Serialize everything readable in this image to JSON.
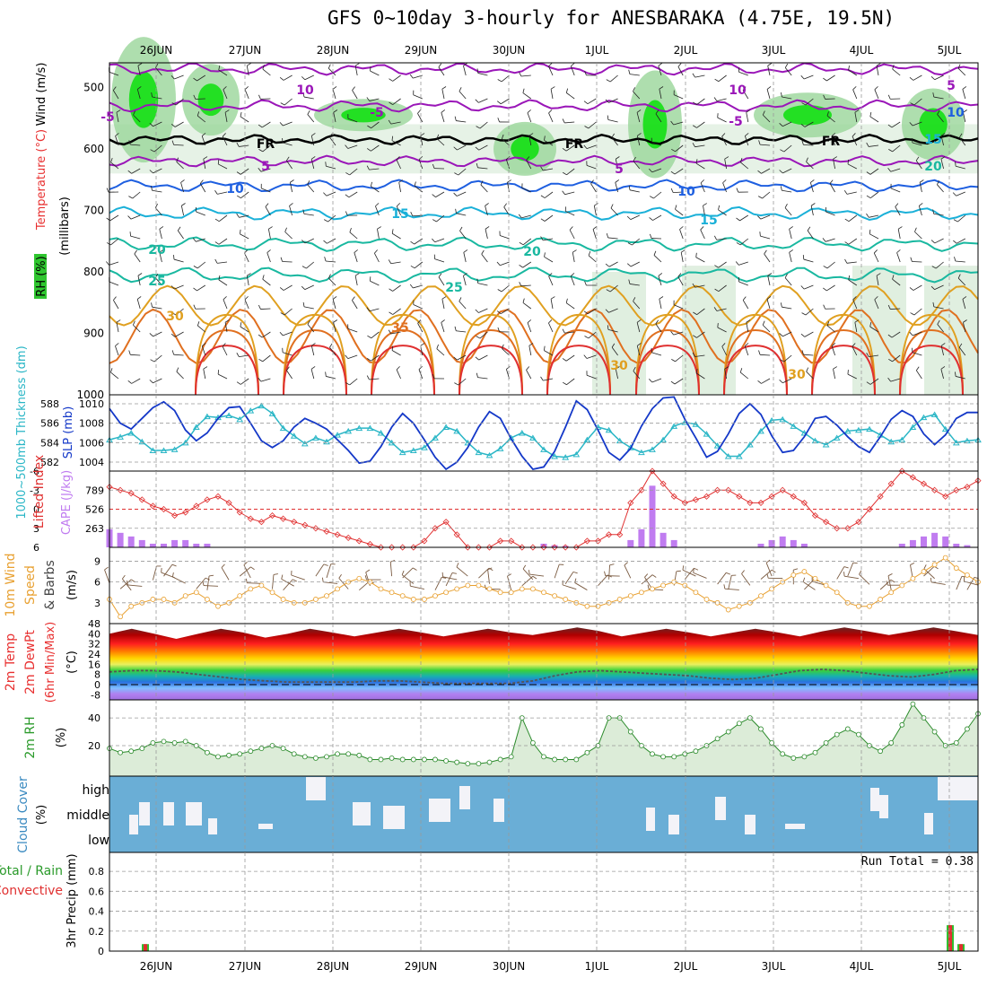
{
  "title": "GFS 0~10day 3-hourly for ANESBARAKA (4.75E, 19.5N)",
  "date_labels": [
    "26JUN",
    "27JUN",
    "28JUN",
    "29JUN",
    "30JUN",
    "1JUL",
    "2JUL",
    "3JUL",
    "4JUL",
    "5JUL"
  ],
  "colors": {
    "rh_green": "#2fc62f",
    "bright_green": "#00e000",
    "temp_purple": "#9a16b8",
    "temp_blue": "#1e5fe0",
    "temp_cyan": "#1ab0d8",
    "temp_teal": "#19b8a0",
    "temp_orange": "#e0a020",
    "temp_red": "#e83030",
    "thickness": "#2ab6c6",
    "slp": "#1438c8",
    "cape": "#c07cf0",
    "lifted": "#e03030",
    "wind10": "#e8a030",
    "cloud": "#6aaed6",
    "rain_total": "#30c030",
    "rain_conv": "#e03030"
  },
  "panels": {
    "upper": {
      "ylabel_wind": "Wind (m/s)",
      "ylabel_temp": "Temperature (°C)",
      "ylabel_rh": "RH (%)",
      "ylabel_pres": "(millibars)",
      "ticks": [
        "500",
        "600",
        "700",
        "800",
        "900",
        "1000"
      ],
      "contour_labels": [
        {
          "text": "10",
          "color": "#9a16b8"
        },
        {
          "text": "-5",
          "color": "#9a16b8"
        },
        {
          "text": "FR",
          "color": "#000000"
        },
        {
          "text": "5",
          "color": "#9a16b8"
        },
        {
          "text": "10",
          "color": "#1e5fe0"
        },
        {
          "text": "15",
          "color": "#1ab0d8"
        },
        {
          "text": "20",
          "color": "#19b8a0"
        },
        {
          "text": "25",
          "color": "#19b8a0"
        },
        {
          "text": "30",
          "color": "#e0a020"
        },
        {
          "text": "35",
          "color": "#e07020"
        },
        {
          "text": "-5",
          "color": "#9a16b8"
        },
        {
          "text": "FR",
          "color": "#000000"
        },
        {
          "text": "5",
          "color": "#9a16b8"
        },
        {
          "text": "10",
          "color": "#1e5fe0"
        },
        {
          "text": "15",
          "color": "#1ab0d8"
        },
        {
          "text": "20",
          "color": "#19b8a0"
        },
        {
          "text": "25",
          "color": "#19b8a0"
        },
        {
          "text": "-5",
          "color": "#9a16b8"
        },
        {
          "text": "10",
          "color": "#9a16b8"
        },
        {
          "text": "FR",
          "color": "#000000"
        },
        {
          "text": "5",
          "color": "#9a16b8"
        },
        {
          "text": "10",
          "color": "#1e5fe0"
        },
        {
          "text": "15",
          "color": "#1ab0d8"
        },
        {
          "text": "20",
          "color": "#19b8a0"
        },
        {
          "text": "30",
          "color": "#e0a020"
        },
        {
          "text": "30",
          "color": "#e0a020"
        }
      ]
    },
    "slp": {
      "ylabel_thick": "1000~500mb Thickness (dm)",
      "ylabel_slp": "SLP (mb)",
      "ticks_left": [
        "588",
        "586",
        "584",
        "582"
      ],
      "ticks_right": [
        "1010",
        "1008",
        "1006",
        "1004"
      ]
    },
    "cape": {
      "ylabel_li": "Lifted Index",
      "ylabel_cape": "CAPE (J/kg)",
      "ticks_left": [
        "-6",
        "-3",
        "0",
        "3",
        "6"
      ],
      "ticks_right": [
        "789",
        "526",
        "263"
      ]
    },
    "wind": {
      "ylabel1": "10m Wind",
      "ylabel2": "Speed",
      "ylabel3": "& Barbs",
      "ylabel4": "(m/s)",
      "ticks": [
        "9",
        "6",
        "3"
      ]
    },
    "temp2m": {
      "ylabel1": "2m Temp",
      "ylabel2": "2m DewPt",
      "ylabel3": "(6hr Min/Max)",
      "ylabel4": "(°C)",
      "ticks": [
        "48",
        "40",
        "32",
        "24",
        "16",
        "8",
        "0",
        "-8"
      ]
    },
    "rh": {
      "ylabel": "2m RH",
      "unit": "(%)",
      "ticks": [
        "40",
        "20"
      ]
    },
    "cloud": {
      "ylabel": "Cloud Cover",
      "unit": "(%)",
      "levels": [
        "high",
        "middle",
        "low"
      ]
    },
    "precip": {
      "ylabel_total": "Total / Rain",
      "ylabel_conv": "Convective",
      "ylabel": "3hr Precip (mm)",
      "ticks": [
        "0.8",
        "0.6",
        "0.4",
        "0.2",
        "0"
      ],
      "run_total": "Run Total = 0.38"
    }
  },
  "chart_data": [
    {
      "type": "line",
      "name": "upper-air cross-section",
      "x": [
        "26JUN",
        "27JUN",
        "28JUN",
        "29JUN",
        "30JUN",
        "1JUL",
        "2JUL",
        "3JUL",
        "4JUL",
        "5JUL"
      ],
      "yaxis": "pressure (mb)",
      "ylim": [
        1000,
        460
      ],
      "isotherms": [
        {
          "label": "10",
          "level_mb": 505
        },
        {
          "label": "-5",
          "level_mb": 535
        },
        {
          "label": "FR",
          "level_mb": 590
        },
        {
          "label": "5",
          "level_mb": 625
        },
        {
          "label": "10",
          "level_mb": 660
        },
        {
          "label": "15",
          "level_mb": 700
        },
        {
          "label": "20",
          "level_mb": 750
        },
        {
          "label": "25",
          "level_mb": 800
        },
        {
          "label": "30",
          "level_mb": 860
        },
        {
          "label": "35",
          "level_mb": 920
        }
      ]
    },
    {
      "type": "line",
      "name": "thickness_slp",
      "x_steps": 81,
      "thickness_dm": [
        584.3,
        584.6,
        585.0,
        584.1,
        583.2,
        583.2,
        583.3,
        584.0,
        585.6,
        586.7,
        586.6,
        586.8,
        586.4,
        587.3,
        587.8,
        587.0,
        585.5,
        584.7,
        583.9,
        584.5,
        584.1,
        584.8,
        585.2,
        585.5,
        585.5,
        585.0,
        584.0,
        583.0,
        583.2,
        583.5,
        584.5,
        585.6,
        585.2,
        584.0,
        583.0,
        582.7,
        583.4,
        584.5,
        585.0,
        584.5,
        583.3,
        582.6,
        582.5,
        582.8,
        584.3,
        585.6,
        585.3,
        584.2,
        583.5,
        583.0,
        583.3,
        584.3,
        585.7,
        586.1,
        585.9,
        584.9,
        583.7,
        582.6,
        582.6,
        583.8,
        585.2,
        586.3,
        586.4,
        585.7,
        585.0,
        584.2,
        583.8,
        584.5,
        585.2,
        585.3,
        585.4,
        584.8,
        584.1,
        584.3,
        585.6,
        586.6,
        586.9,
        585.4,
        584.0,
        584.2,
        584.3
      ],
      "slp_mb": [
        1009.5,
        1008.0,
        1007.4,
        1008.5,
        1009.6,
        1010.2,
        1009.3,
        1007.3,
        1006.2,
        1007.0,
        1008.5,
        1009.6,
        1009.7,
        1008.0,
        1006.2,
        1005.5,
        1006.2,
        1007.6,
        1008.5,
        1008.0,
        1007.4,
        1006.3,
        1005.2,
        1003.9,
        1004.1,
        1005.6,
        1007.6,
        1009.0,
        1008.0,
        1006.3,
        1004.5,
        1003.2,
        1004.0,
        1005.5,
        1007.6,
        1009.2,
        1008.5,
        1006.4,
        1004.6,
        1003.1,
        1003.5,
        1005.1,
        1007.6,
        1010.3,
        1009.4,
        1007.3,
        1005.0,
        1004.2,
        1005.4,
        1007.7,
        1009.5,
        1010.6,
        1010.7,
        1008.4,
        1006.5,
        1004.5,
        1005.1,
        1006.9,
        1009.0,
        1010.0,
        1008.9,
        1006.7,
        1005.0,
        1005.2,
        1006.6,
        1008.5,
        1008.7,
        1007.8,
        1006.6,
        1005.6,
        1005.0,
        1006.6,
        1008.4,
        1009.3,
        1008.7,
        1006.9,
        1005.8,
        1006.8,
        1008.5,
        1009.1,
        1009.1
      ]
    },
    {
      "type": "bar",
      "name": "cape_lifted",
      "cape_jkg": [
        250,
        200,
        150,
        100,
        50,
        50,
        100,
        100,
        50,
        50,
        0,
        0,
        0,
        0,
        0,
        0,
        0,
        0,
        0,
        0,
        0,
        0,
        0,
        0,
        0,
        0,
        0,
        0,
        0,
        0,
        0,
        0,
        0,
        0,
        0,
        0,
        0,
        0,
        0,
        0,
        50,
        30,
        20,
        0,
        0,
        0,
        0,
        0,
        100,
        250,
        850,
        200,
        100,
        0,
        0,
        0,
        0,
        0,
        0,
        0,
        50,
        100,
        150,
        100,
        50,
        0,
        0,
        0,
        0,
        0,
        0,
        0,
        0,
        50,
        100,
        150,
        200,
        150,
        50,
        30,
        0
      ],
      "lifted_index": [
        -3.5,
        -3,
        -2.5,
        -1.5,
        -0.5,
        0,
        1,
        0.5,
        -0.5,
        -1.5,
        -2,
        -1,
        0.5,
        1.5,
        2,
        1,
        1.5,
        2,
        2.5,
        3,
        3.5,
        4,
        4.5,
        5,
        5.5,
        6,
        7,
        8,
        7,
        5,
        3,
        2,
        4,
        7,
        8,
        6,
        5,
        5,
        6,
        7,
        7,
        7,
        6,
        6,
        5,
        5,
        4,
        4,
        -1,
        -3,
        -6,
        -4,
        -2,
        -1,
        -1.5,
        -2,
        -3,
        -3,
        -2,
        -1,
        -1,
        -2,
        -3,
        -2,
        -1,
        1,
        2,
        3,
        3,
        2,
        0,
        -2,
        -4,
        -6,
        -5,
        -4,
        -3,
        -2,
        -3,
        -3.5,
        -4.5
      ],
      "cape_ticks": [
        789,
        526,
        263
      ]
    },
    {
      "type": "line",
      "name": "wind10",
      "speed_ms": [
        3.5,
        1.0,
        2.5,
        3.0,
        3.5,
        3.5,
        3.0,
        4.0,
        4.5,
        3.5,
        2.5,
        3.0,
        4.0,
        5.0,
        5.5,
        4.5,
        3.5,
        3.0,
        3.0,
        3.5,
        4.0,
        5.0,
        6.0,
        6.5,
        6.0,
        5.0,
        4.5,
        4.0,
        3.5,
        3.5,
        4.0,
        4.5,
        5.0,
        5.5,
        5.5,
        5.0,
        4.5,
        4.5,
        5.0,
        5.0,
        4.5,
        4.0,
        3.5,
        3.0,
        2.5,
        2.5,
        3.0,
        3.5,
        4.0,
        4.5,
        5.0,
        5.5,
        6.0,
        5.5,
        4.5,
        3.5,
        3.0,
        2.0,
        2.5,
        3.0,
        4.0,
        5.0,
        6.0,
        7.0,
        7.5,
        6.5,
        5.5,
        4.5,
        3.0,
        2.5,
        2.5,
        3.5,
        4.5,
        5.5,
        6.5,
        7.5,
        8.5,
        9.5,
        8.0,
        7.0,
        6.0
      ]
    },
    {
      "type": "area",
      "name": "temp2m",
      "max_c": [
        40,
        41,
        40,
        39,
        40,
        41,
        41,
        40,
        40,
        41,
        41,
        41,
        41,
        41,
        41,
        41,
        41,
        41,
        41,
        42,
        42,
        42,
        42,
        41,
        41,
        41,
        41,
        41,
        41,
        41,
        41,
        41,
        42,
        42,
        42,
        42,
        42,
        42,
        42,
        42
      ],
      "dewpt_c": [
        10,
        11,
        11,
        10,
        8,
        6,
        4,
        3,
        2,
        2,
        2,
        2,
        3,
        3,
        2,
        1,
        1,
        1,
        1,
        3,
        7,
        10,
        11,
        10,
        9,
        8,
        7,
        5,
        4,
        5,
        8,
        11,
        12,
        11,
        9,
        7,
        6,
        8,
        11,
        12
      ]
    },
    {
      "type": "area",
      "name": "rh2m",
      "rh_pct": [
        18,
        15,
        16,
        18,
        22,
        23,
        22,
        23,
        20,
        15,
        12,
        13,
        14,
        16,
        18,
        20,
        18,
        14,
        12,
        11,
        12,
        14,
        14,
        13,
        10,
        10,
        11,
        10,
        10,
        10,
        10,
        9,
        8,
        7,
        7,
        8,
        10,
        12,
        40,
        22,
        12,
        10,
        10,
        10,
        15,
        20,
        40,
        40,
        30,
        20,
        14,
        12,
        12,
        14,
        16,
        20,
        25,
        30,
        36,
        40,
        32,
        22,
        14,
        11,
        12,
        15,
        22,
        28,
        32,
        28,
        20,
        16,
        22,
        35,
        50,
        40,
        30,
        20,
        22,
        32,
        43
      ]
    },
    {
      "type": "bar",
      "name": "cloud_cover",
      "levels": [
        "high",
        "middle",
        "low"
      ]
    },
    {
      "type": "bar",
      "name": "precip3hr",
      "ylim": [
        0,
        0.9
      ],
      "bars": [
        {
          "date": "25JUN 21Z",
          "value": 0.07
        },
        {
          "date": "5JUL 0Z",
          "value": 0.26
        },
        {
          "date": "5JUL 3Z",
          "value": 0.07
        }
      ],
      "run_total": 0.38
    }
  ]
}
